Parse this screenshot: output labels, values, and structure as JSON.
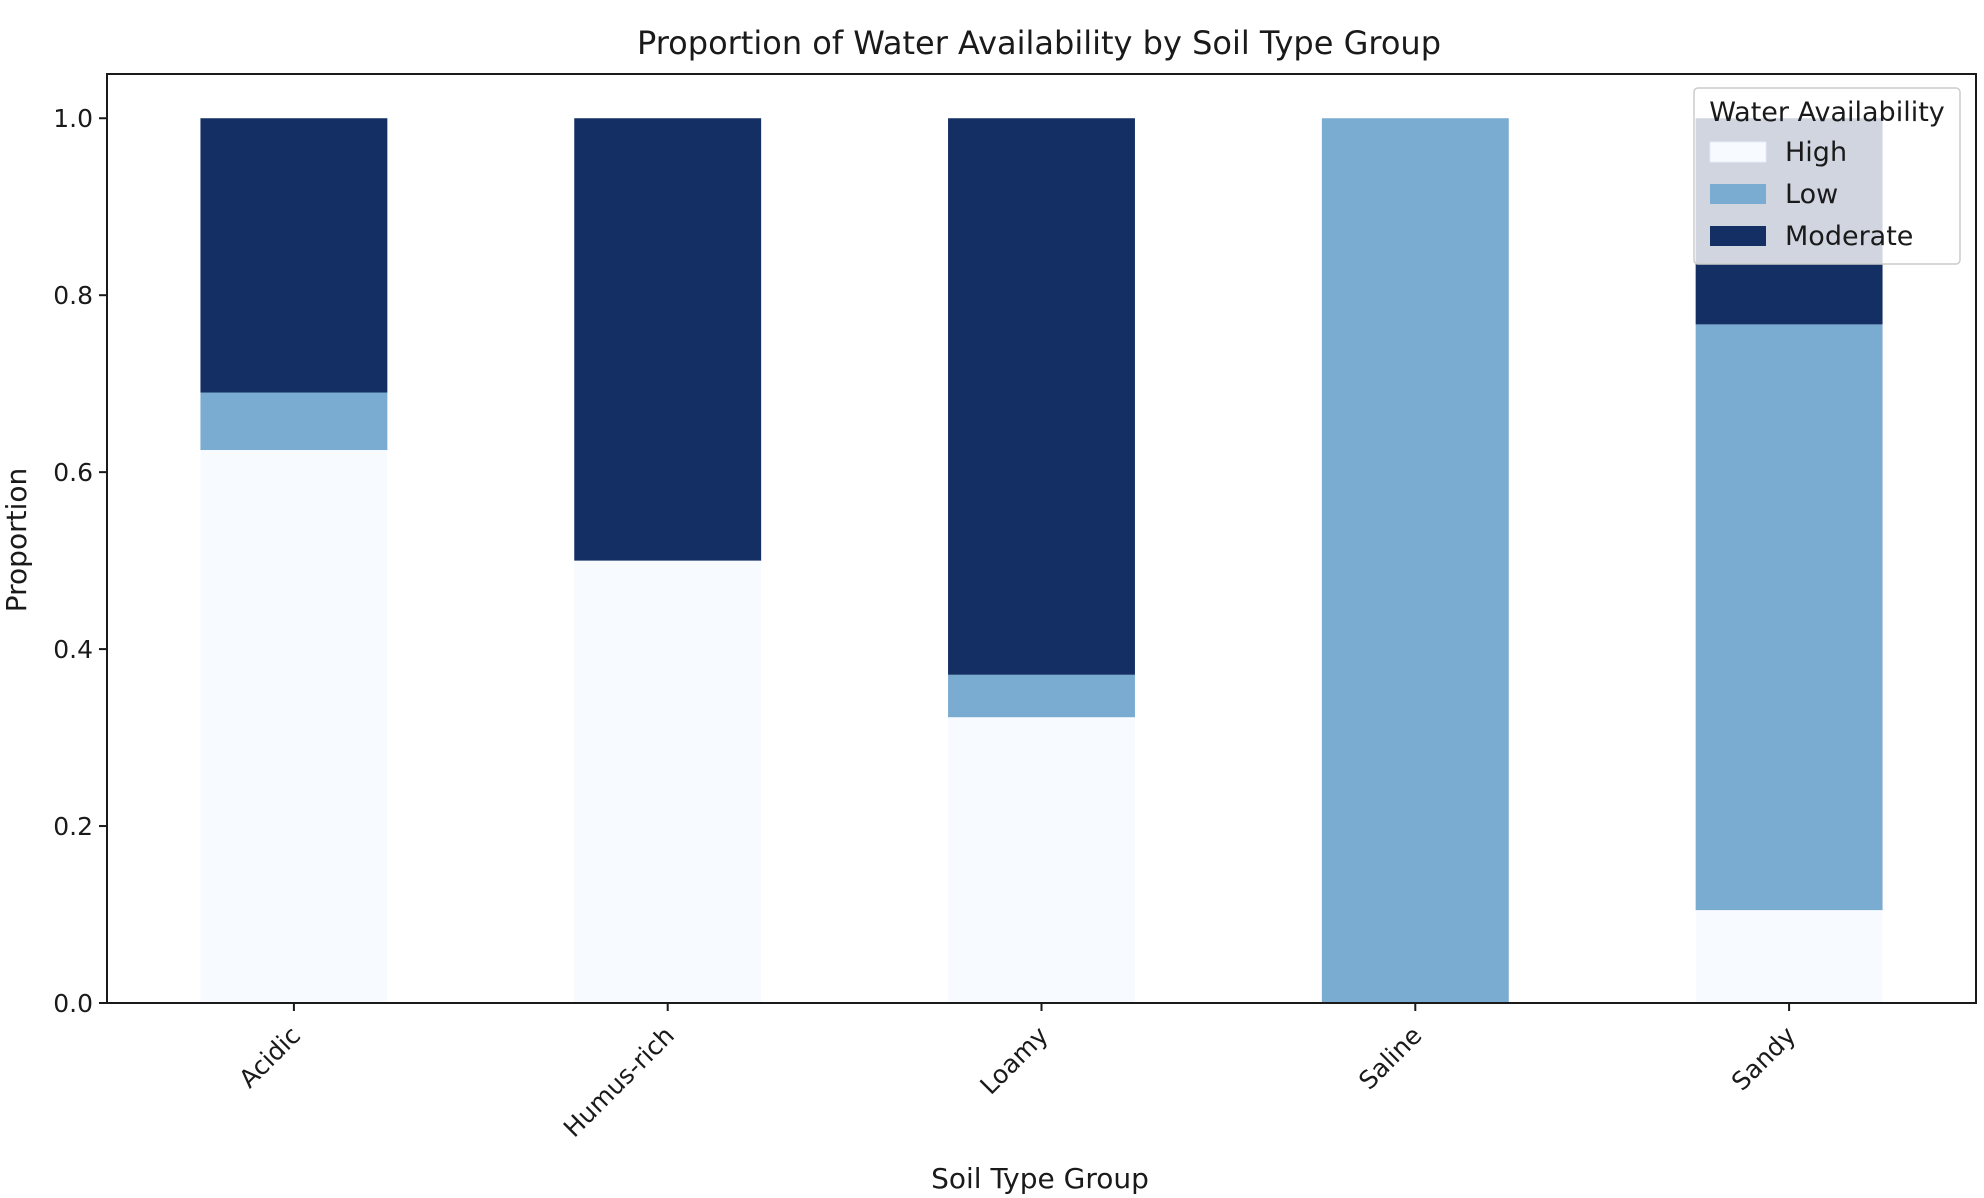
{
  "chart_data": {
    "type": "bar",
    "stacked": true,
    "title": "Proportion of Water Availability by Soil Type Group",
    "xlabel": "Soil Type Group",
    "ylabel": "Proportion",
    "ylim": [
      0,
      1.05
    ],
    "yticks": [
      0.0,
      0.2,
      0.4,
      0.6,
      0.8,
      1.0
    ],
    "ytick_labels": [
      "0.0",
      "0.2",
      "0.4",
      "0.6",
      "0.8",
      "1.0"
    ],
    "categories": [
      "Acidic",
      "Humus-rich",
      "Loamy",
      "Saline",
      "Sandy"
    ],
    "series": [
      {
        "name": "High",
        "color": "#f7fbff",
        "values": [
          0.625,
          0.5,
          0.323,
          0.0,
          0.105
        ]
      },
      {
        "name": "Low",
        "color": "#7aabd1",
        "values": [
          0.065,
          0.0,
          0.048,
          1.0,
          0.662
        ]
      },
      {
        "name": "Moderate",
        "color": "#142f64",
        "values": [
          0.31,
          0.5,
          0.629,
          0.0,
          0.233
        ]
      }
    ],
    "legend": {
      "title": "Water Availability",
      "position": "top-right"
    },
    "grid": false
  }
}
